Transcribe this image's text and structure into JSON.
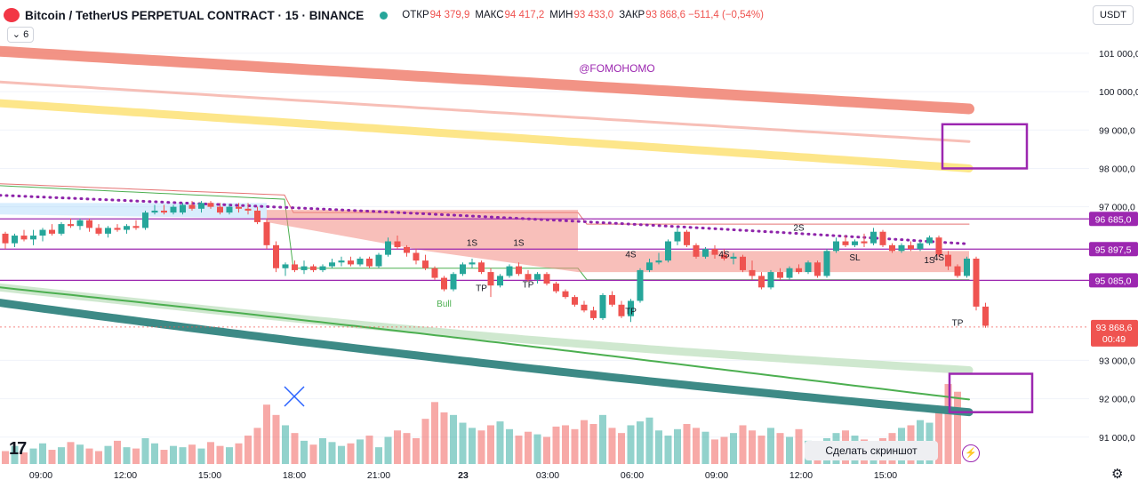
{
  "header": {
    "symbol": "Bitcoin / TetherUS PERPETUAL CONTRACT · 15 · BINANCE",
    "open_label": "ОТКР",
    "open": "94 379,9",
    "high_label": "МАКС",
    "high": "94 417,2",
    "low_label": "МИН",
    "low": "93 433,0",
    "close_label": "ЗАКР",
    "close": "93 868,6 −511,4 (−0,54%)",
    "interval_btn": "6",
    "currency": "USDT"
  },
  "watermark": "@FOMOHOMO",
  "screenshot_btn": "Сделать скриншот",
  "colors": {
    "up": "#26a69a",
    "down": "#ef5350",
    "purple": "#9c27b0",
    "band_red": "#f08070",
    "band_yellow": "#fde68a",
    "green": "#4caf50",
    "teal": "#3d8a86"
  },
  "chart_data": {
    "type": "candlestick",
    "title": "",
    "ylim": [
      90300,
      101600
    ],
    "y_ticks": [
      "101 000,0",
      "100 000,0",
      "99 000,0",
      "98 000,0",
      "97 000,0",
      "93 000,0",
      "92 000,0",
      "91 000,0"
    ],
    "x_ticks": [
      "09:00",
      "12:00",
      "15:00",
      "18:00",
      "21:00",
      "23",
      "03:00",
      "06:00",
      "09:00",
      "12:00",
      "15:00"
    ],
    "levels": [
      {
        "label": "96 685,0",
        "y": 96685
      },
      {
        "label": "95 897,5",
        "y": 95897.5
      },
      {
        "label": "95 085,0",
        "y": 95085
      }
    ],
    "last_price": {
      "label": "93 868,6",
      "timer": "00:49",
      "y": 93868.6
    },
    "signals": [
      {
        "text": "1S",
        "x_idx": 50,
        "y": 95980
      },
      {
        "text": "1S",
        "x_idx": 55,
        "y": 95980
      },
      {
        "text": "TP",
        "x_idx": 51,
        "y": 94800
      },
      {
        "text": "TP",
        "x_idx": 56,
        "y": 94900
      },
      {
        "text": "Bull",
        "x_idx": 47,
        "y": 94400
      },
      {
        "text": "TP",
        "x_idx": 67,
        "y": 94200
      },
      {
        "text": "4S",
        "x_idx": 67,
        "y": 95680
      },
      {
        "text": "4S",
        "x_idx": 77,
        "y": 95680
      },
      {
        "text": "2S",
        "x_idx": 85,
        "y": 96380
      },
      {
        "text": "SL",
        "x_idx": 91,
        "y": 95600
      },
      {
        "text": "1S",
        "x_idx": 99,
        "y": 95530
      },
      {
        "text": "4S",
        "x_idx": 100,
        "y": 95600
      },
      {
        "text": "TP",
        "x_idx": 102,
        "y": 93900
      }
    ],
    "candles": [
      [
        96300,
        96350,
        95900,
        96050
      ],
      [
        96050,
        96300,
        95950,
        96250
      ],
      [
        96250,
        96400,
        96100,
        96150
      ],
      [
        96150,
        96400,
        96000,
        96250
      ],
      [
        96250,
        96450,
        96100,
        96400
      ],
      [
        96400,
        96550,
        96250,
        96300
      ],
      [
        96300,
        96600,
        96250,
        96550
      ],
      [
        96550,
        96700,
        96450,
        96500
      ],
      [
        96500,
        96700,
        96400,
        96650
      ],
      [
        96650,
        96700,
        96350,
        96450
      ],
      [
        96450,
        96550,
        96250,
        96300
      ],
      [
        96300,
        96500,
        96200,
        96450
      ],
      [
        96450,
        96550,
        96350,
        96400
      ],
      [
        96400,
        96550,
        96300,
        96500
      ],
      [
        96500,
        96650,
        96400,
        96450
      ],
      [
        96450,
        96900,
        96400,
        96850
      ],
      [
        96850,
        97050,
        96800,
        96900
      ],
      [
        96900,
        97050,
        96800,
        96850
      ],
      [
        96850,
        97050,
        96800,
        97000
      ],
      [
        96850,
        97100,
        96800,
        97050
      ],
      [
        97050,
        97150,
        96900,
        96950
      ],
      [
        96950,
        97150,
        96850,
        97100
      ],
      [
        97100,
        97150,
        96950,
        97000
      ],
      [
        97000,
        97100,
        96800,
        96850
      ],
      [
        96850,
        97050,
        96800,
        97000
      ],
      [
        97000,
        97100,
        96850,
        96950
      ],
      [
        96950,
        97100,
        96800,
        96900
      ],
      [
        96900,
        97000,
        96550,
        96600
      ],
      [
        96600,
        96700,
        95900,
        96000
      ],
      [
        96000,
        96100,
        95300,
        95400
      ],
      [
        95400,
        95550,
        95200,
        95500
      ],
      [
        95500,
        95600,
        95300,
        95350
      ],
      [
        95350,
        95600,
        95250,
        95450
      ],
      [
        95450,
        95500,
        95300,
        95350
      ],
      [
        95350,
        95500,
        95300,
        95450
      ],
      [
        95450,
        95650,
        95400,
        95550
      ],
      [
        95550,
        95700,
        95450,
        95600
      ],
      [
        95600,
        95700,
        95450,
        95500
      ],
      [
        95500,
        95700,
        95450,
        95650
      ],
      [
        95650,
        95700,
        95400,
        95450
      ],
      [
        95450,
        95800,
        95400,
        95750
      ],
      [
        95750,
        96200,
        95700,
        96100
      ],
      [
        96100,
        96250,
        95900,
        95950
      ],
      [
        95950,
        96000,
        95700,
        95800
      ],
      [
        95800,
        95900,
        95500,
        95600
      ],
      [
        95600,
        95750,
        95350,
        95400
      ],
      [
        95400,
        95450,
        95100,
        95150
      ],
      [
        95150,
        95200,
        94800,
        94850
      ],
      [
        94850,
        95300,
        94800,
        95250
      ],
      [
        95250,
        95550,
        95200,
        95500
      ],
      [
        95500,
        95650,
        95400,
        95550
      ],
      [
        95550,
        95600,
        95250,
        95300
      ],
      [
        95300,
        95400,
        94650,
        94950
      ],
      [
        94950,
        95250,
        94900,
        95200
      ],
      [
        95200,
        95500,
        95150,
        95450
      ],
      [
        95450,
        95550,
        95200,
        95250
      ],
      [
        95250,
        95350,
        95050,
        95100
      ],
      [
        95100,
        95300,
        95000,
        95250
      ],
      [
        95250,
        95300,
        94950,
        95000
      ],
      [
        95000,
        95050,
        94750,
        94800
      ],
      [
        94800,
        94850,
        94600,
        94650
      ],
      [
        94650,
        94700,
        94400,
        94450
      ],
      [
        94450,
        94550,
        94250,
        94300
      ],
      [
        94300,
        94400,
        94050,
        94100
      ],
      [
        94100,
        94750,
        94050,
        94700
      ],
      [
        94700,
        94800,
        94400,
        94450
      ],
      [
        94450,
        94550,
        94100,
        94150
      ],
      [
        94150,
        94600,
        94000,
        94550
      ],
      [
        94550,
        95400,
        94500,
        95350
      ],
      [
        95350,
        95650,
        95300,
        95550
      ],
      [
        95550,
        95800,
        95500,
        95600
      ],
      [
        95600,
        96150,
        95550,
        96100
      ],
      [
        96100,
        96450,
        96000,
        96350
      ],
      [
        96350,
        96400,
        95950,
        96000
      ],
      [
        96000,
        96050,
        95650,
        95700
      ],
      [
        95700,
        95950,
        95650,
        95900
      ],
      [
        95900,
        96000,
        95650,
        95750
      ],
      [
        95750,
        95900,
        95600,
        95650
      ],
      [
        95650,
        95800,
        95500,
        95700
      ],
      [
        95700,
        95750,
        95300,
        95350
      ],
      [
        95350,
        95600,
        95100,
        95200
      ],
      [
        95200,
        95300,
        94850,
        94900
      ],
      [
        94900,
        95350,
        94850,
        95300
      ],
      [
        95300,
        95400,
        95100,
        95150
      ],
      [
        95150,
        95450,
        95100,
        95400
      ],
      [
        95400,
        95500,
        95250,
        95300
      ],
      [
        95300,
        95600,
        95250,
        95550
      ],
      [
        95550,
        95600,
        95150,
        95200
      ],
      [
        95200,
        95900,
        95150,
        95850
      ],
      [
        95850,
        96200,
        95800,
        96100
      ],
      [
        96100,
        96250,
        95950,
        96000
      ],
      [
        96000,
        96150,
        95950,
        96100
      ],
      [
        96100,
        96300,
        95950,
        96050
      ],
      [
        96050,
        96450,
        96000,
        96350
      ],
      [
        96350,
        96400,
        95950,
        96000
      ],
      [
        96000,
        96050,
        95800,
        95850
      ],
      [
        95850,
        96050,
        95800,
        96000
      ],
      [
        96000,
        96100,
        95850,
        95900
      ],
      [
        95900,
        96100,
        95850,
        96050
      ],
      [
        96050,
        96250,
        96000,
        96200
      ],
      [
        96200,
        96250,
        95700,
        95750
      ],
      [
        95750,
        95850,
        95350,
        95450
      ],
      [
        95450,
        95500,
        95150,
        95200
      ],
      [
        95200,
        95700,
        95150,
        95650
      ],
      [
        95650,
        95700,
        94300,
        94400
      ],
      [
        94400,
        94500,
        93850,
        93900
      ]
    ],
    "volume": [
      10,
      14,
      9,
      12,
      16,
      11,
      13,
      17,
      15,
      12,
      10,
      14,
      18,
      13,
      12,
      20,
      16,
      11,
      14,
      13,
      15,
      12,
      17,
      14,
      13,
      16,
      22,
      28,
      46,
      38,
      30,
      24,
      18,
      15,
      20,
      17,
      14,
      16,
      19,
      22,
      13,
      21,
      26,
      24,
      20,
      35,
      48,
      40,
      38,
      32,
      28,
      26,
      30,
      33,
      27,
      22,
      25,
      23,
      21,
      29,
      30,
      27,
      34,
      31,
      38,
      28,
      24,
      30,
      33,
      36,
      26,
      22,
      27,
      31,
      28,
      25,
      19,
      21,
      24,
      30,
      26,
      22,
      28,
      24,
      21,
      27,
      18,
      16,
      20,
      24,
      26,
      22,
      19,
      17,
      20,
      24,
      28,
      30,
      34,
      32,
      40,
      62,
      56
    ]
  }
}
